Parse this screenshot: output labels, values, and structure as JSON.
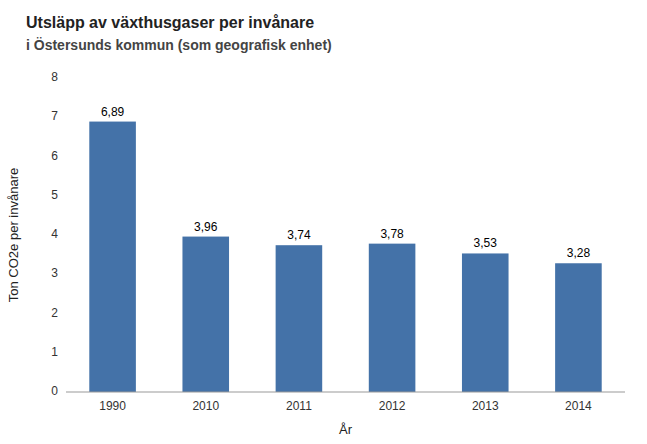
{
  "chart_data": {
    "type": "bar",
    "title": "Utsläpp av växthusgaser per invånare",
    "subtitle": "i Östersunds kommun (som geografisk enhet)",
    "x_label": "År",
    "y_label": "Ton CO2e per invånare",
    "categories": [
      "1990",
      "2010",
      "2011",
      "2012",
      "2013",
      "2014"
    ],
    "values": [
      6.89,
      3.96,
      3.74,
      3.78,
      3.53,
      3.28
    ],
    "value_labels": [
      "6,89",
      "3,96",
      "3,74",
      "3,78",
      "3,53",
      "3,28"
    ],
    "data_labels": true,
    "color": "#4472a8",
    "ylim": [
      0,
      8
    ],
    "yticks": [
      0,
      1,
      2,
      3,
      4,
      5,
      6,
      7,
      8
    ],
    "grid": false
  }
}
